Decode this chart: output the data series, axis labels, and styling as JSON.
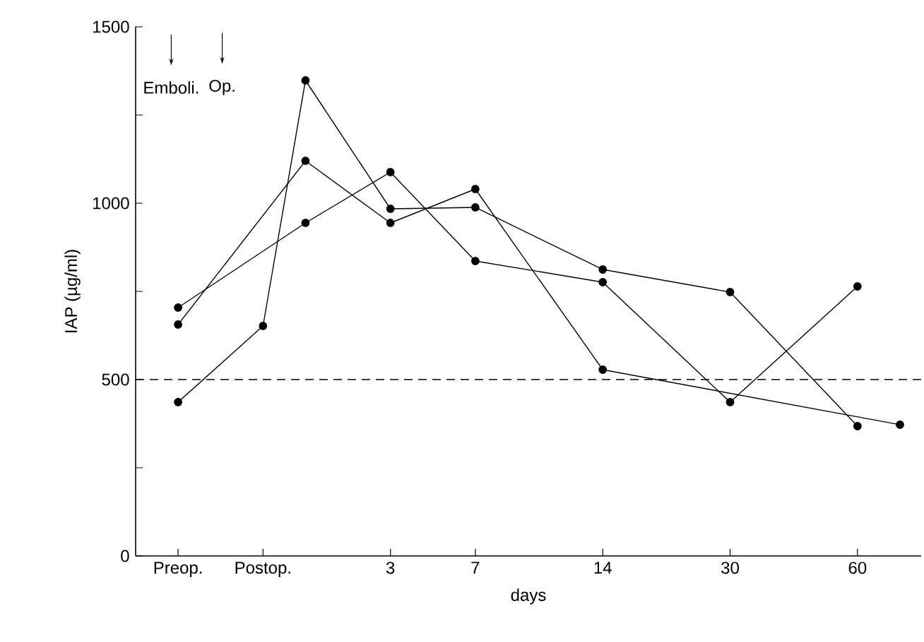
{
  "chart_data": {
    "type": "line",
    "xlabel": "days",
    "ylabel": "IAP (µg/ml)",
    "categories": [
      "Preop.",
      null,
      "Postop.",
      null,
      null,
      "3",
      null,
      "7",
      null,
      null,
      "14",
      null,
      null,
      "30",
      null,
      null,
      "60",
      null
    ],
    "ylim": [
      0,
      1500
    ],
    "yticks": [
      0,
      {
        "value": 250,
        "label": null
      },
      500,
      {
        "value": 750,
        "label": null
      },
      1000,
      {
        "value": 1250,
        "label": null
      },
      1500
    ],
    "series": [
      {
        "color": "#000000",
        "values": [
          436,
          null,
          652,
          1348,
          null,
          984,
          null,
          988,
          null,
          null,
          812,
          null,
          null,
          748,
          null,
          null,
          368,
          null
        ]
      },
      {
        "color": "#000000",
        "values": [
          656,
          null,
          null,
          1120,
          null,
          944,
          null,
          1040,
          null,
          null,
          528,
          null,
          null,
          null,
          null,
          null,
          null,
          372
        ]
      },
      {
        "color": "#000000",
        "values": [
          704,
          null,
          null,
          944,
          null,
          1088,
          null,
          836,
          null,
          null,
          776,
          null,
          null,
          436,
          null,
          null,
          764,
          null
        ]
      }
    ],
    "ref_lines": [
      {
        "axis": "y",
        "value": 500,
        "line_style": "dashed",
        "color": "#000000"
      }
    ],
    "annotations": [
      "Emboli.",
      "Op."
    ],
    "marker": "circle",
    "line_style": "solid",
    "grid": false
  }
}
